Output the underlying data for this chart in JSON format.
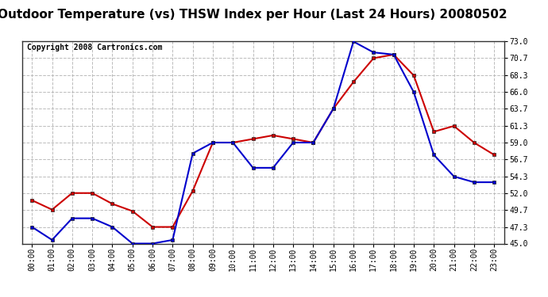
{
  "title": "Outdoor Temperature (vs) THSW Index per Hour (Last 24 Hours) 20080502",
  "copyright": "Copyright 2008 Cartronics.com",
  "hours": [
    0,
    1,
    2,
    3,
    4,
    5,
    6,
    7,
    8,
    9,
    10,
    11,
    12,
    13,
    14,
    15,
    16,
    17,
    18,
    19,
    20,
    21,
    22,
    23
  ],
  "hour_labels": [
    "00:00",
    "01:00",
    "02:00",
    "03:00",
    "04:00",
    "05:00",
    "06:00",
    "07:00",
    "08:00",
    "09:00",
    "10:00",
    "11:00",
    "12:00",
    "13:00",
    "14:00",
    "15:00",
    "16:00",
    "17:00",
    "18:00",
    "19:00",
    "20:00",
    "21:00",
    "22:00",
    "23:00"
  ],
  "temp_red": [
    51.0,
    49.7,
    52.0,
    52.0,
    50.5,
    49.5,
    47.3,
    47.3,
    52.3,
    59.0,
    59.0,
    59.5,
    60.0,
    59.5,
    59.0,
    63.7,
    67.4,
    70.7,
    71.2,
    68.3,
    60.5,
    61.3,
    59.0,
    57.3
  ],
  "thsw_blue": [
    47.3,
    45.5,
    48.5,
    48.5,
    47.3,
    45.0,
    45.0,
    45.5,
    57.5,
    59.0,
    59.0,
    55.5,
    55.5,
    59.0,
    59.0,
    63.7,
    73.0,
    71.5,
    71.2,
    66.0,
    57.3,
    54.3,
    53.5,
    53.5
  ],
  "ylim_min": 45.0,
  "ylim_max": 73.0,
  "ytick_values": [
    45.0,
    47.3,
    49.7,
    52.0,
    54.3,
    56.7,
    59.0,
    61.3,
    63.7,
    66.0,
    68.3,
    70.7,
    73.0
  ],
  "temp_color": "#cc0000",
  "thsw_color": "#0000cc",
  "bg_color": "#ffffff",
  "grid_color": "#bbbbbb",
  "title_fontsize": 11,
  "copyright_fontsize": 7,
  "tick_fontsize": 7,
  "marker_size": 3.5,
  "linewidth": 1.5
}
